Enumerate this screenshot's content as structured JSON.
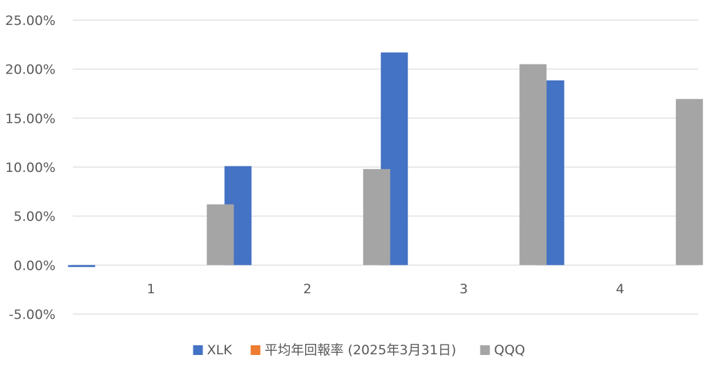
{
  "chart_data": {
    "type": "bar",
    "title": "",
    "xlabel": "",
    "ylabel": "",
    "categories": [
      "1",
      "2",
      "3",
      "4"
    ],
    "series": [
      {
        "name": "XLK",
        "color": "#4472C4",
        "values": [
          -0.2,
          10.1,
          21.7,
          18.85
        ]
      },
      {
        "name": "平均年回報率 (2025年3月31日)",
        "color": "#ED7D31",
        "values": [
          0,
          0,
          0,
          0
        ]
      },
      {
        "name": "QQQ",
        "color": "#A5A5A5",
        "values": [
          6.2,
          9.8,
          20.5,
          16.95
        ]
      }
    ],
    "ylim": [
      -5,
      25
    ],
    "y_ticks": [
      "-5.00%",
      "0.00%",
      "5.00%",
      "10.00%",
      "15.00%",
      "20.00%",
      "25.00%"
    ],
    "y_tick_values": [
      -5,
      0,
      5,
      10,
      15,
      20,
      25
    ],
    "grid": true,
    "legend_position": "bottom"
  }
}
